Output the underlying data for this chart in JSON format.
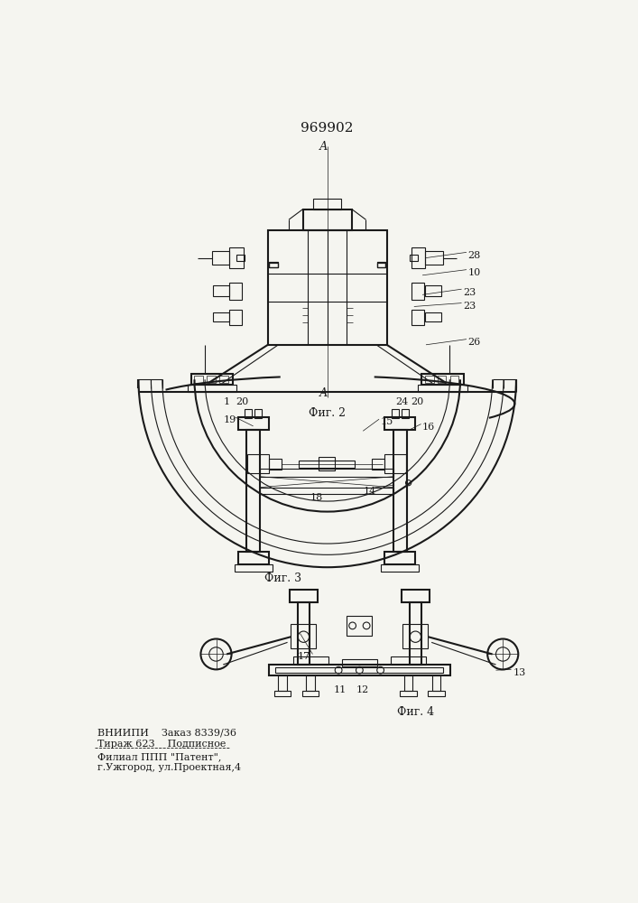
{
  "title": "969902",
  "bg_color": "#f5f5f0",
  "line_color": "#1a1a1a",
  "fig2_caption": "Фиг. 2",
  "fig3_caption": "Фиг. 3",
  "fig4_caption": "Фиг. 4",
  "bottom_text_line1": "ВНИИПИ    Заказ 8339/36",
  "bottom_text_line2": "Тираж 623    Подписное",
  "bottom_text_line3": "Филиал ППП \"Патент\",",
  "bottom_text_line4": "г.Ужгород, ул.Проектная,4",
  "lw": 0.8,
  "lw2": 1.5,
  "lw3": 0.5
}
